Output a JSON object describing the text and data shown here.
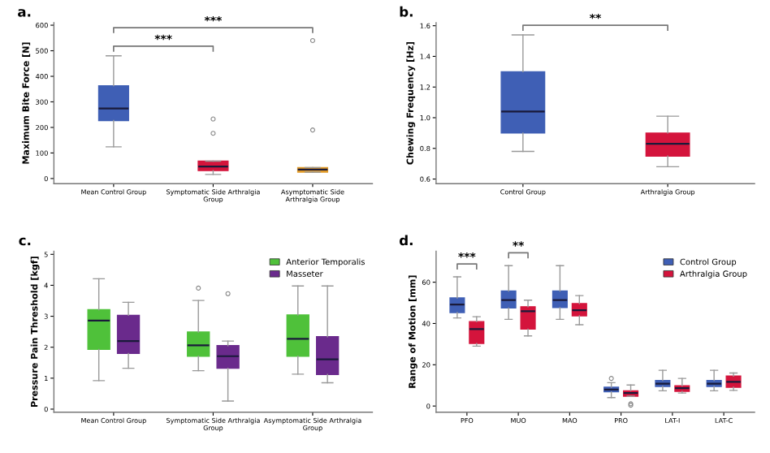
{
  "chart_data": [
    {
      "type": "box",
      "ylabel": "Maximum Bite Force [N]",
      "categories": [
        "Mean Control Group",
        "Symptomatic Side Arthralgia\nGroup",
        "Asymptomatic Side\nArthralgia Group"
      ],
      "colors": [
        "#3f5fb5",
        "#d4143c",
        "#e09a2a"
      ],
      "boxes": [
        {
          "low": 124,
          "q1": 227,
          "median": 274,
          "q3": 363,
          "high": 480
        },
        {
          "low": 16,
          "q1": 31,
          "median": 47,
          "q3": 68,
          "high": 68,
          "outliers": [
            177,
            233
          ]
        },
        {
          "low": 25,
          "q1": 25,
          "median": 35,
          "q3": 43,
          "high": 43,
          "outliers": [
            190,
            540
          ]
        }
      ],
      "ylim": [
        -20,
        610
      ],
      "yticks": [
        0,
        100,
        200,
        300,
        400,
        500,
        600
      ],
      "grid": false,
      "annotations": [
        "a.",
        "***",
        "***"
      ]
    },
    {
      "type": "box",
      "ylabel": "Chewing Frequency [Hz]",
      "categories": [
        "Control Group",
        "Arthralgia Group"
      ],
      "colors": [
        "#3f5fb5",
        "#d4143c"
      ],
      "boxes": [
        {
          "low": 0.78,
          "q1": 0.9,
          "median": 1.04,
          "q3": 1.3,
          "high": 1.54
        },
        {
          "low": 0.68,
          "q1": 0.75,
          "median": 0.83,
          "q3": 0.9,
          "high": 1.01
        }
      ],
      "ylim": [
        0.57,
        1.62
      ],
      "yticks": [
        0.6,
        0.8,
        {
          "value": 1,
          "label": "1.0"
        },
        1.2,
        1.4,
        1.6
      ],
      "grid": false,
      "annotations": [
        "b.",
        "**"
      ]
    },
    {
      "type": "box",
      "ylabel": "Pressure Pain Threshold [kgf]",
      "categories": [
        "Mean Control Group",
        "Symptomatic Side Arthralgia\nGroup",
        "Asymptomatic Side Arthralgia\nGroup"
      ],
      "legend": "top right",
      "grid": false,
      "series": [
        {
          "name": "Anterior Temporalis",
          "color": "#4fc13a",
          "boxes": [
            {
              "low": 0.92,
              "q1": 1.93,
              "median": 2.86,
              "q3": 3.21,
              "high": 4.21
            },
            {
              "low": 1.24,
              "q1": 1.71,
              "median": 2.06,
              "q3": 2.49,
              "high": 3.51,
              "outliers": [
                3.91
              ]
            },
            {
              "low": 1.13,
              "q1": 1.71,
              "median": 2.27,
              "q3": 3.04,
              "high": 3.98
            }
          ]
        },
        {
          "name": "Masseter",
          "color": "#6a2a8c",
          "boxes": [
            {
              "low": 1.32,
              "q1": 1.8,
              "median": 2.2,
              "q3": 3.03,
              "high": 3.45
            },
            {
              "low": 0.26,
              "q1": 1.32,
              "median": 1.71,
              "q3": 2.05,
              "high": 2.2,
              "outliers": [
                3.73
              ]
            },
            {
              "low": 0.85,
              "q1": 1.12,
              "median": 1.61,
              "q3": 2.34,
              "high": 3.98
            }
          ]
        }
      ],
      "ylim": [
        -0.1,
        5.1
      ],
      "yticks": [
        0,
        1,
        2,
        3,
        4,
        5
      ],
      "annotations": [
        "c."
      ]
    },
    {
      "type": "box",
      "ylabel": "Range of Motion [mm]",
      "categories": [
        "PFO",
        "MUO",
        "MAO",
        "PRO",
        "LAT-I",
        "LAT-C"
      ],
      "legend": "top right",
      "grid": false,
      "series": [
        {
          "name": "Control Group",
          "color": "#3f5fb5",
          "boxes": [
            {
              "low": 42.7,
              "q1": 45.3,
              "median": 49.2,
              "q3": 52.4,
              "high": 62.6
            },
            {
              "low": 42,
              "q1": 47.5,
              "median": 51.3,
              "q3": 55.7,
              "high": 68
            },
            {
              "low": 42,
              "q1": 47.7,
              "median": 51.3,
              "q3": 55.7,
              "high": 68
            },
            {
              "low": 4.1,
              "q1": 6.9,
              "median": 8,
              "q3": 9.1,
              "high": 11.3,
              "outliers": [
                13.4
              ]
            },
            {
              "low": 7.4,
              "q1": 9.5,
              "median": 10.8,
              "q3": 12.4,
              "high": 17.3
            },
            {
              "low": 7.4,
              "q1": 9.5,
              "median": 10.8,
              "q3": 12.4,
              "high": 17.3
            }
          ]
        },
        {
          "name": "Arthralgia Group",
          "color": "#d4143c",
          "boxes": [
            {
              "low": 29,
              "q1": 30.3,
              "median": 37.3,
              "q3": 40.9,
              "high": 43.3
            },
            {
              "low": 34,
              "q1": 37.3,
              "median": 45.9,
              "q3": 48.1,
              "high": 51.3
            },
            {
              "low": 39.4,
              "q1": 43.7,
              "median": 46.4,
              "q3": 49.6,
              "high": 53.5
            },
            {
              "low": 4.8,
              "q1": 4.8,
              "median": 6.3,
              "q3": 7.4,
              "high": 10.2,
              "outliers": [
                0.4,
                1.1
              ]
            },
            {
              "low": 6.3,
              "q1": 7.1,
              "median": 8.7,
              "q3": 9.8,
              "high": 13.4
            },
            {
              "low": 7.6,
              "q1": 9.1,
              "median": 11.7,
              "q3": 14.5,
              "high": 16
            }
          ]
        }
      ],
      "ylim": [
        -3,
        75
      ],
      "yticks": [
        0,
        20,
        40,
        60
      ],
      "annotations": [
        "d.",
        "***",
        "**"
      ]
    }
  ]
}
